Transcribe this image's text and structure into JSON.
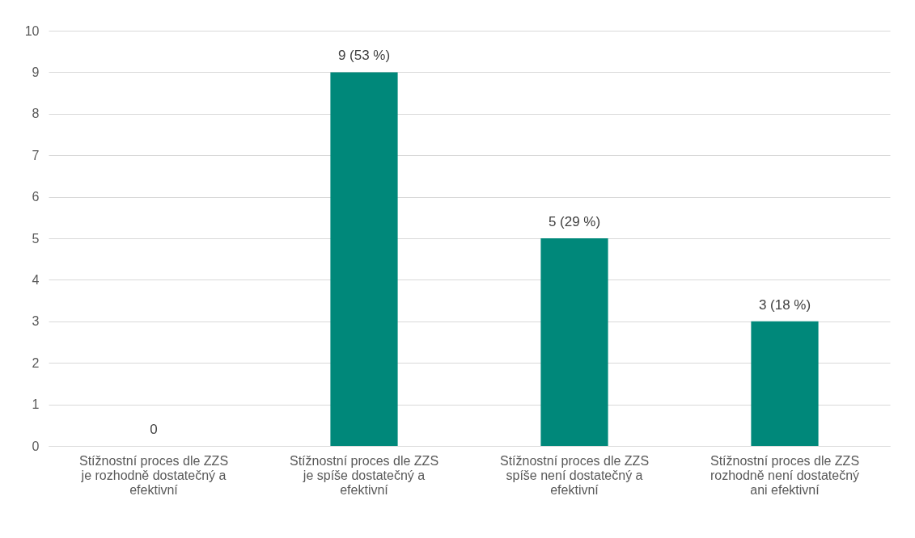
{
  "chart_data": {
    "type": "bar",
    "categories": [
      "Stížnostní proces dle ZZS je rozhodně dostatečný a efektivní",
      "Stížnostní proces dle ZZS je spíše dostatečný a efektivní",
      "Stížnostní proces dle ZZS spíše není dostatečný a efektivní",
      "Stížnostní proces dle ZZS rozhodně není dostatečný ani efektivní"
    ],
    "values": [
      0,
      9,
      5,
      3
    ],
    "value_labels": [
      "0",
      "9 (53 %)",
      "5 (29 %)",
      "3 (18 %)"
    ],
    "color": "#00887a",
    "ylim": [
      0,
      10
    ],
    "yticks": [
      0,
      1,
      2,
      3,
      4,
      5,
      6,
      7,
      8,
      9,
      10
    ],
    "grid": "y"
  }
}
